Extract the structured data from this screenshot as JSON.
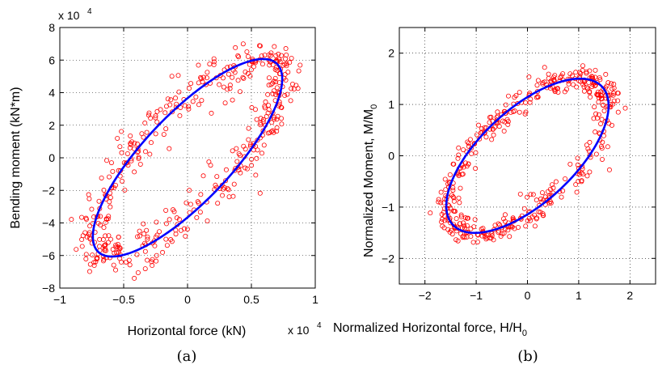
{
  "colors": {
    "points": "#ff0000",
    "fit": "#0000ff",
    "axes": "#000000"
  },
  "chart_data": [
    {
      "type": "scatter",
      "caption": "(a)",
      "xlabel": "Horizontal force (kN)",
      "ylabel": "Bending moment (kN*m)",
      "x_multiplier": "x 10",
      "x_exponent": "4",
      "y_multiplier": "x 10",
      "y_exponent": "4",
      "xlim": [
        -1,
        1
      ],
      "ylim": [
        -8,
        8
      ],
      "xticks": [
        -1,
        -0.5,
        0,
        0.5,
        1
      ],
      "xtick_labels": [
        "−1",
        "−0.5",
        "0",
        "0.5",
        "1"
      ],
      "yticks": [
        -8,
        -6,
        -4,
        -2,
        0,
        2,
        4,
        6,
        8
      ],
      "ytick_labels": [
        "−8",
        "−6",
        "−4",
        "−2",
        "0",
        "2",
        "4",
        "6",
        "8"
      ],
      "grid": true,
      "fit_ellipse": {
        "center": [
          0,
          0
        ],
        "points": [
          [
            0.73,
            5.4
          ],
          [
            0.65,
            6.0
          ],
          [
            -0.73,
            -5.4
          ],
          [
            -0.52,
            -6.0
          ]
        ]
      },
      "scatter_style": "open-circle",
      "scatter_seed": 7,
      "scatter_count": 460,
      "scatter_noise": [
        0.06,
        0.7
      ]
    },
    {
      "type": "scatter",
      "caption": "(b)",
      "xlabel": "Normalized Horizontal force,  H/H",
      "xlabel_sub": "0",
      "ylabel": "Normalized Moment, M/M",
      "ylabel_sub": "0",
      "xlim": [
        -2.5,
        2.5
      ],
      "ylim": [
        -2.5,
        2.5
      ],
      "xticks": [
        -2,
        -1,
        0,
        1,
        2
      ],
      "xtick_labels": [
        "−2",
        "−1",
        "0",
        "1",
        "2"
      ],
      "yticks": [
        -2,
        -1,
        0,
        1,
        2
      ],
      "ytick_labels": [
        "−2",
        "−1",
        "0",
        "1",
        "2"
      ],
      "grid": true,
      "fit_ellipse": {
        "center": [
          0,
          0
        ],
        "points": [
          [
            1.47,
            1.33
          ],
          [
            1.1,
            1.5
          ],
          [
            -1.47,
            -1.33
          ],
          [
            -0.95,
            -1.5
          ]
        ]
      },
      "scatter_style": "open-circle",
      "scatter_seed": 11,
      "scatter_count": 460,
      "scatter_noise": [
        0.12,
        0.12
      ]
    }
  ]
}
